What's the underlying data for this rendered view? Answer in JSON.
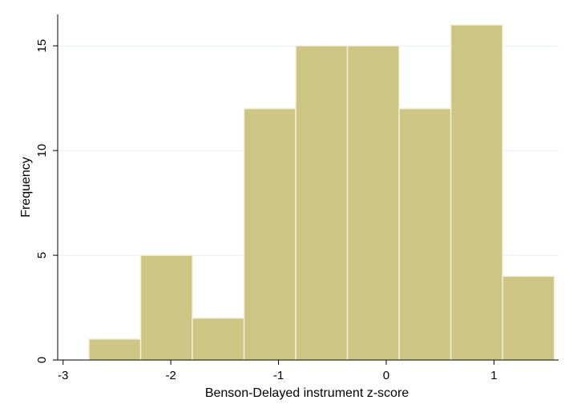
{
  "chart_data": {
    "type": "bar",
    "subtype": "histogram",
    "xlabel": "Benson-Delayed instrument z-score",
    "ylabel": "Frequency",
    "xlim": [
      -3.05,
      1.6
    ],
    "ylim": [
      0,
      16.5
    ],
    "xticks": [
      -3,
      -2,
      -1,
      0,
      1
    ],
    "xtick_labels": [
      "-3",
      "-2",
      "-1",
      "0",
      "1"
    ],
    "yticks": [
      0,
      5,
      10,
      15
    ],
    "ytick_labels": [
      "0",
      "5",
      "10",
      "15"
    ],
    "grid": true,
    "bins": [
      {
        "x0": -2.76,
        "x1": -2.28,
        "value": 1
      },
      {
        "x0": -2.28,
        "x1": -1.8,
        "value": 5
      },
      {
        "x0": -1.8,
        "x1": -1.32,
        "value": 2
      },
      {
        "x0": -1.32,
        "x1": -0.84,
        "value": 12
      },
      {
        "x0": -0.84,
        "x1": -0.36,
        "value": 15
      },
      {
        "x0": -0.36,
        "x1": 0.12,
        "value": 15
      },
      {
        "x0": 0.12,
        "x1": 0.6,
        "value": 12
      },
      {
        "x0": 0.6,
        "x1": 1.08,
        "value": 16
      },
      {
        "x0": 1.08,
        "x1": 1.56,
        "value": 4
      }
    ],
    "colors": {
      "bar_fill": "#cdc584",
      "bar_edge": "#f2efd9",
      "plot_bg": "#ffffff",
      "grid": "#e6eef2",
      "axis": "#000000"
    }
  }
}
